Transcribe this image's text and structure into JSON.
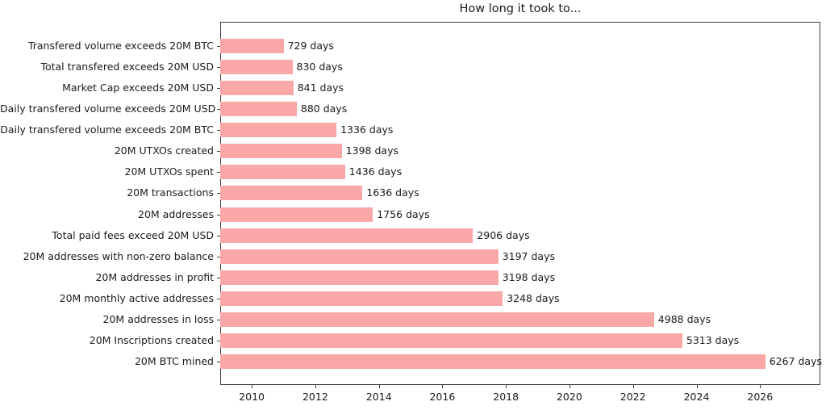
{
  "title": "How long it took to...",
  "chart_data": {
    "type": "bar",
    "orientation": "horizontal",
    "title": "How long it took to...",
    "unit": "days",
    "bar_color": "#f9a7a7",
    "grid": false,
    "categories": [
      "Transfered volume exceeds 20M BTC",
      "Total transfered exceeds 20M USD",
      "Market Cap exceeds 20M USD",
      "Daily transfered volume exceeds 20M USD",
      "Daily transfered volume exceeds 20M BTC",
      "20M UTXOs created",
      "20M UTXOs spent",
      "20M transactions",
      "20M addresses",
      "Total paid fees exceed 20M USD",
      "20M addresses with non-zero balance",
      "20M addresses in profit",
      "20M monthly active addresses",
      "20M addresses in loss",
      "20M Inscriptions created",
      "20M BTC mined"
    ],
    "values": [
      729,
      830,
      841,
      880,
      1336,
      1398,
      1436,
      1636,
      1756,
      2906,
      3197,
      3198,
      3248,
      4988,
      5313,
      6267
    ],
    "bar_labels": [
      "729 days",
      "830 days",
      "841 days",
      "880 days",
      "1336 days",
      "1398 days",
      "1436 days",
      "1636 days",
      "1756 days",
      "2906 days",
      "3197 days",
      "3198 days",
      "3248 days",
      "4988 days",
      "5313 days",
      "6267 days"
    ],
    "x_axis": {
      "tick_years": [
        2010,
        2012,
        2014,
        2016,
        2018,
        2020,
        2022,
        2024,
        2026
      ],
      "tick_labels": [
        "2010",
        "2012",
        "2014",
        "2016",
        "2018",
        "2020",
        "2022",
        "2024",
        "2026"
      ],
      "epoch": "2009-01-03",
      "xlim_days": [
        0,
        6900
      ]
    }
  }
}
